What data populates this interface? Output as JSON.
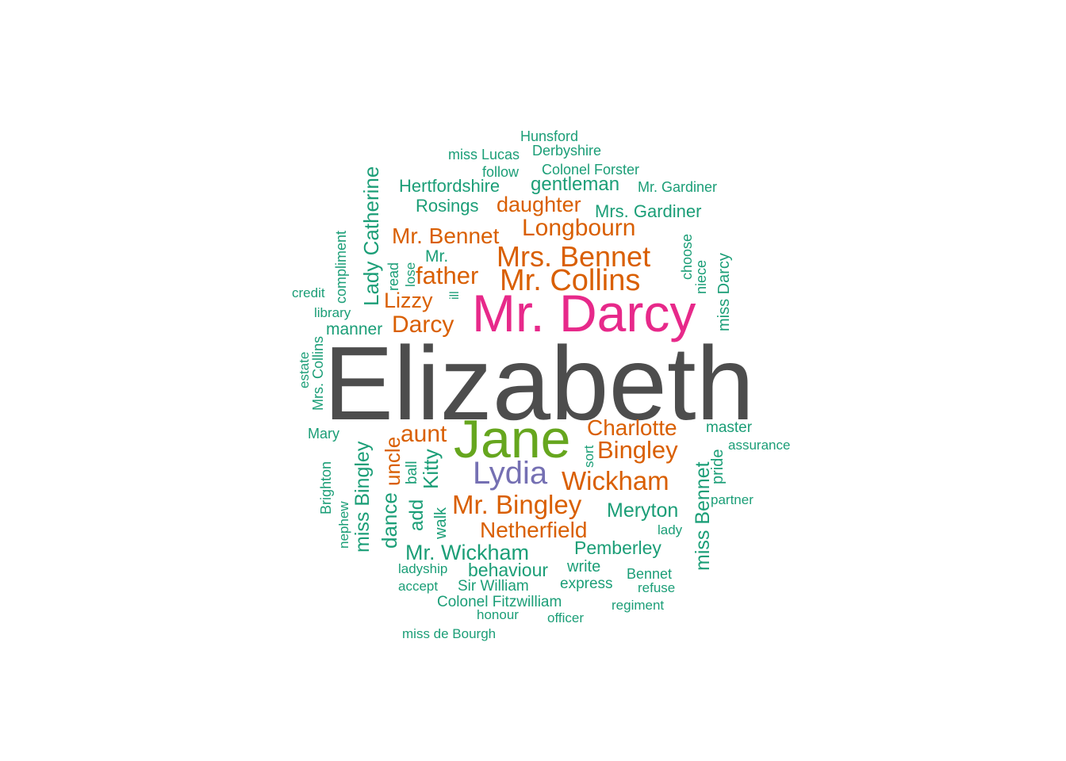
{
  "words": {
    "elizabeth": "Elizabeth",
    "mr_darcy": "Mr. Darcy",
    "jane": "Jane",
    "lydia": "Lydia",
    "mrs_bennet": "Mrs. Bennet",
    "mr_collins": "Mr. Collins",
    "mr_bingley": "Mr. Bingley",
    "wickham": "Wickham",
    "bingley": "Bingley",
    "charlotte": "Charlotte",
    "longbourn": "Longbourn",
    "mr_bennet": "Mr. Bennet",
    "father": "father",
    "darcy": "Darcy",
    "lizzy": "Lizzy",
    "aunt": "aunt",
    "uncle": "uncle",
    "daughter": "daughter",
    "netherfield": "Netherfield",
    "hertfordshire": "Hertfordshire",
    "rosings": "Rosings",
    "gentleman": "gentleman",
    "mrs_gardiner": "Mrs. Gardiner",
    "mr": "Mr.",
    "manner": "manner",
    "meryton": "Meryton",
    "pemberley": "Pemberley",
    "mr_wickham": "Mr. Wickham",
    "behaviour": "behaviour",
    "write": "write",
    "hunsford": "Hunsford",
    "miss_lucas": "miss Lucas",
    "derbyshire": "Derbyshire",
    "follow": "follow",
    "colonel_forster": "Colonel Forster",
    "mr_gardiner": "Mr. Gardiner",
    "credit": "credit",
    "library": "library",
    "mary": "Mary",
    "master": "master",
    "assurance": "assurance",
    "partner": "partner",
    "lady": "lady",
    "ladyship": "ladyship",
    "accept": "accept",
    "sir_william": "Sir William",
    "express": "express",
    "bennet": "Bennet",
    "refuse": "refuse",
    "colonel_fitzwilliam": "Colonel Fitzwilliam",
    "honour": "honour",
    "officer": "officer",
    "regiment": "regiment",
    "miss_de_bourgh": "miss de Bourgh",
    "lady_catherine": "Lady Catherine",
    "compliment": "compliment",
    "read": "read",
    "lose": "lose",
    "ill": "ill",
    "choose": "choose",
    "niece": "niece",
    "miss_darcy": "miss Darcy",
    "estate": "estate",
    "mrs_collins": "Mrs. Collins",
    "ball": "ball",
    "kitty": "Kitty",
    "sort": "sort",
    "miss_bingley": "miss Bingley",
    "brighton": "Brighton",
    "nephew": "nephew",
    "dance": "dance",
    "add": "add",
    "walk": "walk",
    "miss_bennet": "miss Bennet",
    "pride": "pride"
  },
  "colors": {
    "grey": "#4d4d4d",
    "pink": "#e7298a",
    "green": "#66a61e",
    "purple": "#7570b3",
    "orange": "#d95f02",
    "teal": "#1b9e77"
  }
}
